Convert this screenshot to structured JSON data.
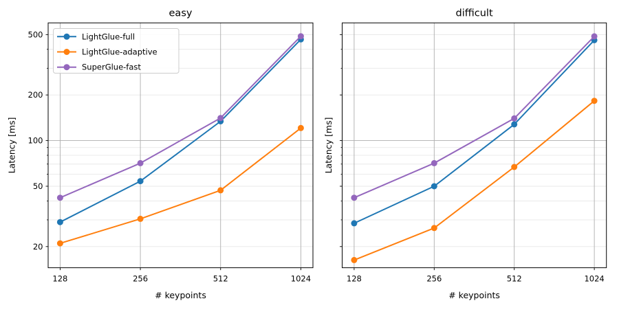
{
  "figure": {
    "background": "#ffffff"
  },
  "chart_data": {
    "type": "line",
    "x": [
      128,
      256,
      512,
      1024
    ],
    "x_tick_labels": [
      "128",
      "256",
      "512",
      "1024"
    ],
    "xlabel": "# keypoints",
    "ylabel": "Latency [ms]",
    "x_scale": "log2",
    "y_scale": "log10",
    "xlim": [
      115.4,
      1137
    ],
    "ylim": [
      14.5,
      597.5
    ],
    "y_labeled_ticks": [
      20,
      50,
      100,
      200,
      500
    ],
    "y_minor_ticks": [
      30,
      40,
      60,
      70,
      80,
      90,
      300,
      400
    ],
    "y_major_gridlines": [
      100
    ],
    "grid": "both",
    "legend_position": "upper left",
    "series_names": [
      "LightGlue-full",
      "LightGlue-adaptive",
      "SuperGlue-fast"
    ],
    "series_colors": [
      "#1f77b4",
      "#ff7f0e",
      "#9467bd"
    ],
    "subplots": [
      {
        "title": "easy",
        "show_y_tick_labels": true,
        "show_legend": true,
        "series": [
          {
            "name": "LightGlue-full",
            "values": [
              29,
              54,
              134,
              465
            ]
          },
          {
            "name": "LightGlue-adaptive",
            "values": [
              21,
              30.5,
              47,
              121
            ]
          },
          {
            "name": "SuperGlue-fast",
            "values": [
              42,
              71,
              141,
              488
            ]
          }
        ]
      },
      {
        "title": "difficult",
        "show_y_tick_labels": false,
        "show_legend": false,
        "series": [
          {
            "name": "LightGlue-full",
            "values": [
              28.5,
              50,
              128,
              460
            ]
          },
          {
            "name": "LightGlue-adaptive",
            "values": [
              16.3,
              26.5,
              67,
              183
            ]
          },
          {
            "name": "SuperGlue-fast",
            "values": [
              42,
              71,
              140,
              487
            ]
          }
        ]
      }
    ],
    "style": {
      "grid_major_color": "#adadad",
      "grid_minor_color": "#e8e8e8",
      "spine_color": "#000000",
      "tick_color": "#000000",
      "text_color": "#000000",
      "legend_border_color": "#cccccc",
      "legend_background": "rgba(255,255,255,0.85)"
    }
  }
}
